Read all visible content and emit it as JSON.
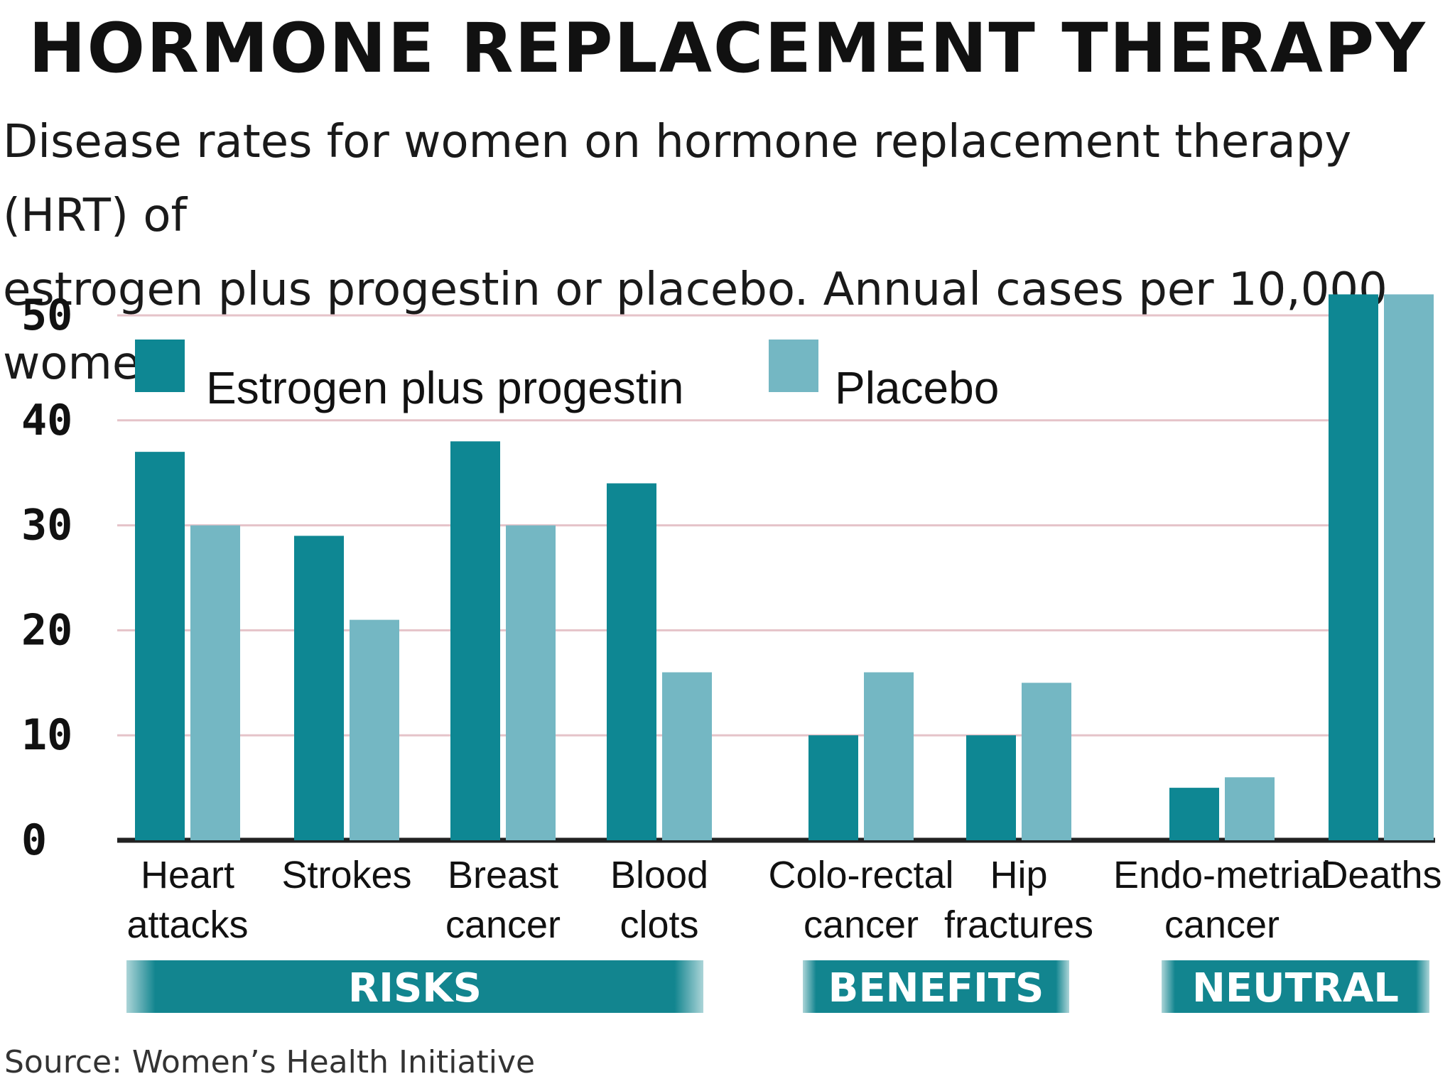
{
  "title": "HORMONE REPLACEMENT THERAPY",
  "subtitle_lines": [
    "Disease rates for women on hormone replacement therapy (HRT) of",
    "estrogen plus progestin or placebo. Annual cases per 10,000 women:"
  ],
  "source": "Source: Women’s Health Initiative",
  "colors": {
    "estrogen": "#0e8793",
    "placebo": "#74b7c3",
    "grid": "#e5c3c9",
    "axis": "#222222",
    "band": "#12858f"
  },
  "chart_data": {
    "type": "bar",
    "ylim": [
      0,
      50
    ],
    "yticks": [
      0,
      10,
      20,
      30,
      40,
      50
    ],
    "grid": true,
    "legend_position": "top",
    "series": [
      {
        "name": "Estrogen plus progestin",
        "values": [
          37,
          29,
          38,
          34,
          10,
          10,
          5,
          52
        ]
      },
      {
        "name": "Placebo",
        "values": [
          30,
          21,
          30,
          16,
          16,
          15,
          6,
          52
        ]
      }
    ],
    "categories": [
      {
        "lines": [
          "Heart",
          "attacks"
        ]
      },
      {
        "lines": [
          "Strokes"
        ]
      },
      {
        "lines": [
          "Breast",
          "cancer"
        ]
      },
      {
        "lines": [
          "Blood",
          "clots"
        ]
      },
      {
        "lines": [
          "Colo-rectal",
          "cancer"
        ]
      },
      {
        "lines": [
          "Hip",
          "fractures"
        ]
      },
      {
        "lines": [
          "Endo-metrial",
          "cancer"
        ]
      },
      {
        "lines": [
          "Deaths"
        ]
      }
    ],
    "groups": [
      {
        "label": "RISKS",
        "categories": [
          0,
          1,
          2,
          3
        ]
      },
      {
        "label": "BENEFITS",
        "categories": [
          4,
          5
        ]
      },
      {
        "label": "NEUTRAL",
        "categories": [
          6,
          7
        ]
      }
    ]
  }
}
